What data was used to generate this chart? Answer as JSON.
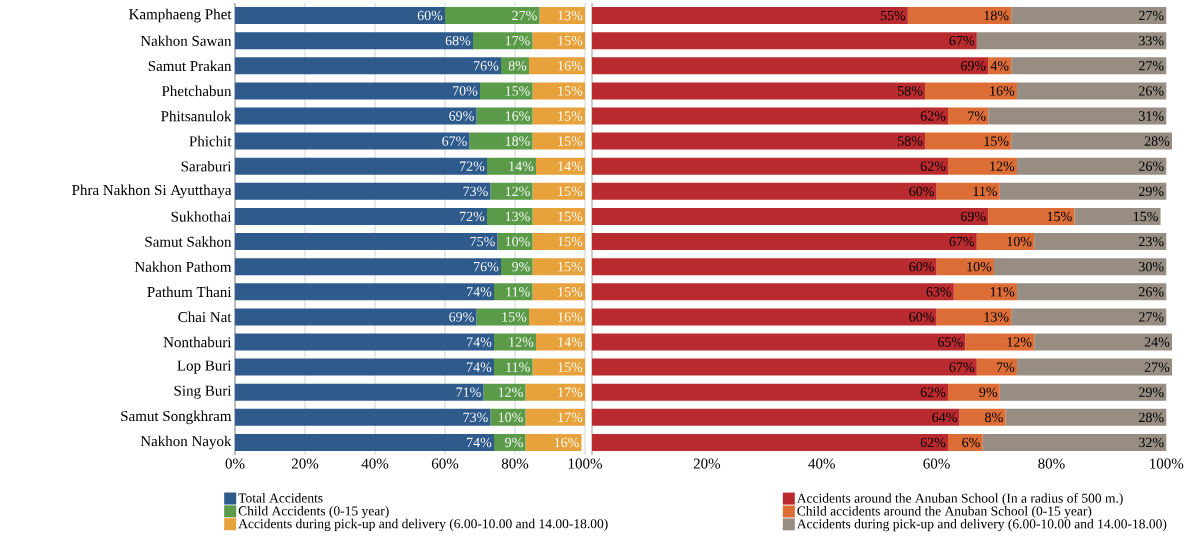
{
  "chart_data": [
    {
      "type": "bar",
      "orientation": "horizontal",
      "stacked": true,
      "grid": "x",
      "legend": "bottom left",
      "categories": [
        "Kamphaeng Phet",
        "Nakhon Sawan",
        "Samut Prakan",
        "Phetchabun",
        "Phitsanulok",
        "Phichit",
        "Saraburi",
        "Phra Nakhon Si Ayutthaya",
        "Sukhothai",
        "Samut Sakhon",
        "Nakhon Pathom",
        "Pathum Thani",
        "Chai Nat",
        "Nonthaburi",
        "Lop Buri",
        "Sing Buri",
        "Samut Songkhram",
        "Nakhon Nayok"
      ],
      "xlim": [
        0,
        100
      ],
      "xticks": [
        {
          "value": 0,
          "label": "0%"
        },
        {
          "value": 20,
          "label": "20%"
        },
        {
          "value": 40,
          "label": "40%"
        },
        {
          "value": 60,
          "label": "60%"
        },
        {
          "value": 80,
          "label": "80%"
        },
        {
          "value": 100,
          "label": "100%"
        }
      ],
      "series": [
        {
          "name": "Total Accidents",
          "color": "#2e5a8c",
          "values": [
            60,
            68,
            76,
            70,
            69,
            67,
            72,
            73,
            72,
            75,
            76,
            74,
            69,
            74,
            74,
            71,
            73,
            74
          ],
          "value_labels": [
            "60%",
            "68%",
            "76%",
            "70%",
            "69%",
            "67%",
            "72%",
            "73%",
            "72%",
            "75%",
            "76%",
            "74%",
            "69%",
            "74%",
            "74%",
            "71%",
            "73%",
            "74%"
          ]
        },
        {
          "name": "Child Accidents (0-15 year)",
          "color": "#5a9a48",
          "values": [
            27,
            17,
            8,
            15,
            16,
            18,
            14,
            12,
            13,
            10,
            9,
            11,
            15,
            12,
            11,
            12,
            10,
            9
          ],
          "value_labels": [
            "27%",
            "17%",
            "8%",
            "15%",
            "16%",
            "18%",
            "14%",
            "12%",
            "13%",
            "10%",
            "9%",
            "11%",
            "15%",
            "12%",
            "11%",
            "12%",
            "10%",
            "9%"
          ]
        },
        {
          "name": "Accidents during pick-up and delivery (6.00-10.00 and 14.00-18.00)",
          "color": "#e8a23c",
          "values": [
            13,
            15,
            16,
            15,
            15,
            15,
            14,
            15,
            15,
            15,
            15,
            15,
            16,
            14,
            15,
            17,
            17,
            16
          ],
          "value_labels": [
            "13%",
            "15%",
            "16%",
            "15%",
            "15%",
            "15%",
            "14%",
            "15%",
            "15%",
            "15%",
            "15%",
            "15%",
            "16%",
            "14%",
            "15%",
            "17%",
            "17%",
            "16%"
          ]
        }
      ]
    },
    {
      "type": "bar",
      "orientation": "horizontal",
      "stacked": true,
      "legend": "bottom right",
      "tick_labels": "x",
      "categories": [
        null,
        null,
        null,
        null,
        null,
        null,
        null,
        null,
        null,
        null,
        null,
        null,
        null,
        null,
        null,
        null,
        null,
        null
      ],
      "xlim": [
        0,
        101
      ],
      "xticks": [
        {
          "value": 0,
          "label": null
        },
        {
          "value": 20,
          "label": "20%"
        },
        {
          "value": 40,
          "label": "40%"
        },
        {
          "value": 60,
          "label": "60%"
        },
        {
          "value": 80,
          "label": "80%"
        },
        {
          "value": 100,
          "label": "100%"
        }
      ],
      "series": [
        {
          "name": "Accidents around the Anuban School (In a radius of 500 m.)",
          "color": "#ba2b2f",
          "values": [
            55,
            67,
            69,
            58,
            62,
            58,
            62,
            60,
            69,
            67,
            60,
            63,
            60,
            65,
            67,
            62,
            64,
            62
          ],
          "value_labels": [
            "55%",
            "67%",
            "69%",
            "58%",
            "62%",
            "58%",
            "62%",
            "60%",
            "69%",
            "67%",
            "60%",
            "63%",
            "60%",
            "65%",
            "67%",
            "62%",
            "64%",
            "62%"
          ]
        },
        {
          "name": "Child accidents around the Anuban School (0-15 year)",
          "color": "#dd6d36",
          "values": [
            18,
            0,
            4,
            16,
            7,
            15,
            12,
            11,
            15,
            10,
            10,
            11,
            13,
            12,
            7,
            9,
            8,
            6
          ],
          "value_labels": [
            "18%",
            null,
            "4%",
            "16%",
            "7%",
            "15%",
            "12%",
            "11%",
            "15%",
            "10%",
            "10%",
            "11%",
            "13%",
            "12%",
            "7%",
            "9%",
            "8%",
            "6%"
          ]
        },
        {
          "name": "Accidents during pick-up and delivery (6.00-10.00 and 14.00-18.00)",
          "color": "#978d82",
          "values": [
            27,
            33,
            27,
            26,
            31,
            28,
            26,
            29,
            15,
            23,
            30,
            26,
            27,
            24,
            27,
            29,
            28,
            32
          ],
          "value_labels": [
            "27%",
            "33%",
            "27%",
            "26%",
            "31%",
            "28%",
            "26%",
            "29%",
            "15%",
            "23%",
            "30%",
            "26%",
            "27%",
            "24%",
            "27%",
            "29%",
            "28%",
            "32%"
          ]
        }
      ]
    }
  ]
}
